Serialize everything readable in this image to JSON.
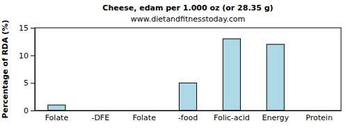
{
  "chart_data": {
    "type": "bar",
    "title": "Cheese, edam per 1.000 oz (or 28.35 g)",
    "subtitle": "www.dietandfitnesstoday.com",
    "y_label": "Percentage of RDA (%)",
    "categories": [
      "Folate",
      "-DFE",
      "Folate",
      "-food",
      "Folic-acid",
      "Energy",
      "Protein"
    ],
    "values": [
      1,
      0,
      0,
      5,
      13,
      12,
      0
    ],
    "color": "#add8e6",
    "ylim": [
      0,
      15
    ],
    "yticks": [
      0,
      5,
      10,
      15
    ],
    "grid": false
  }
}
